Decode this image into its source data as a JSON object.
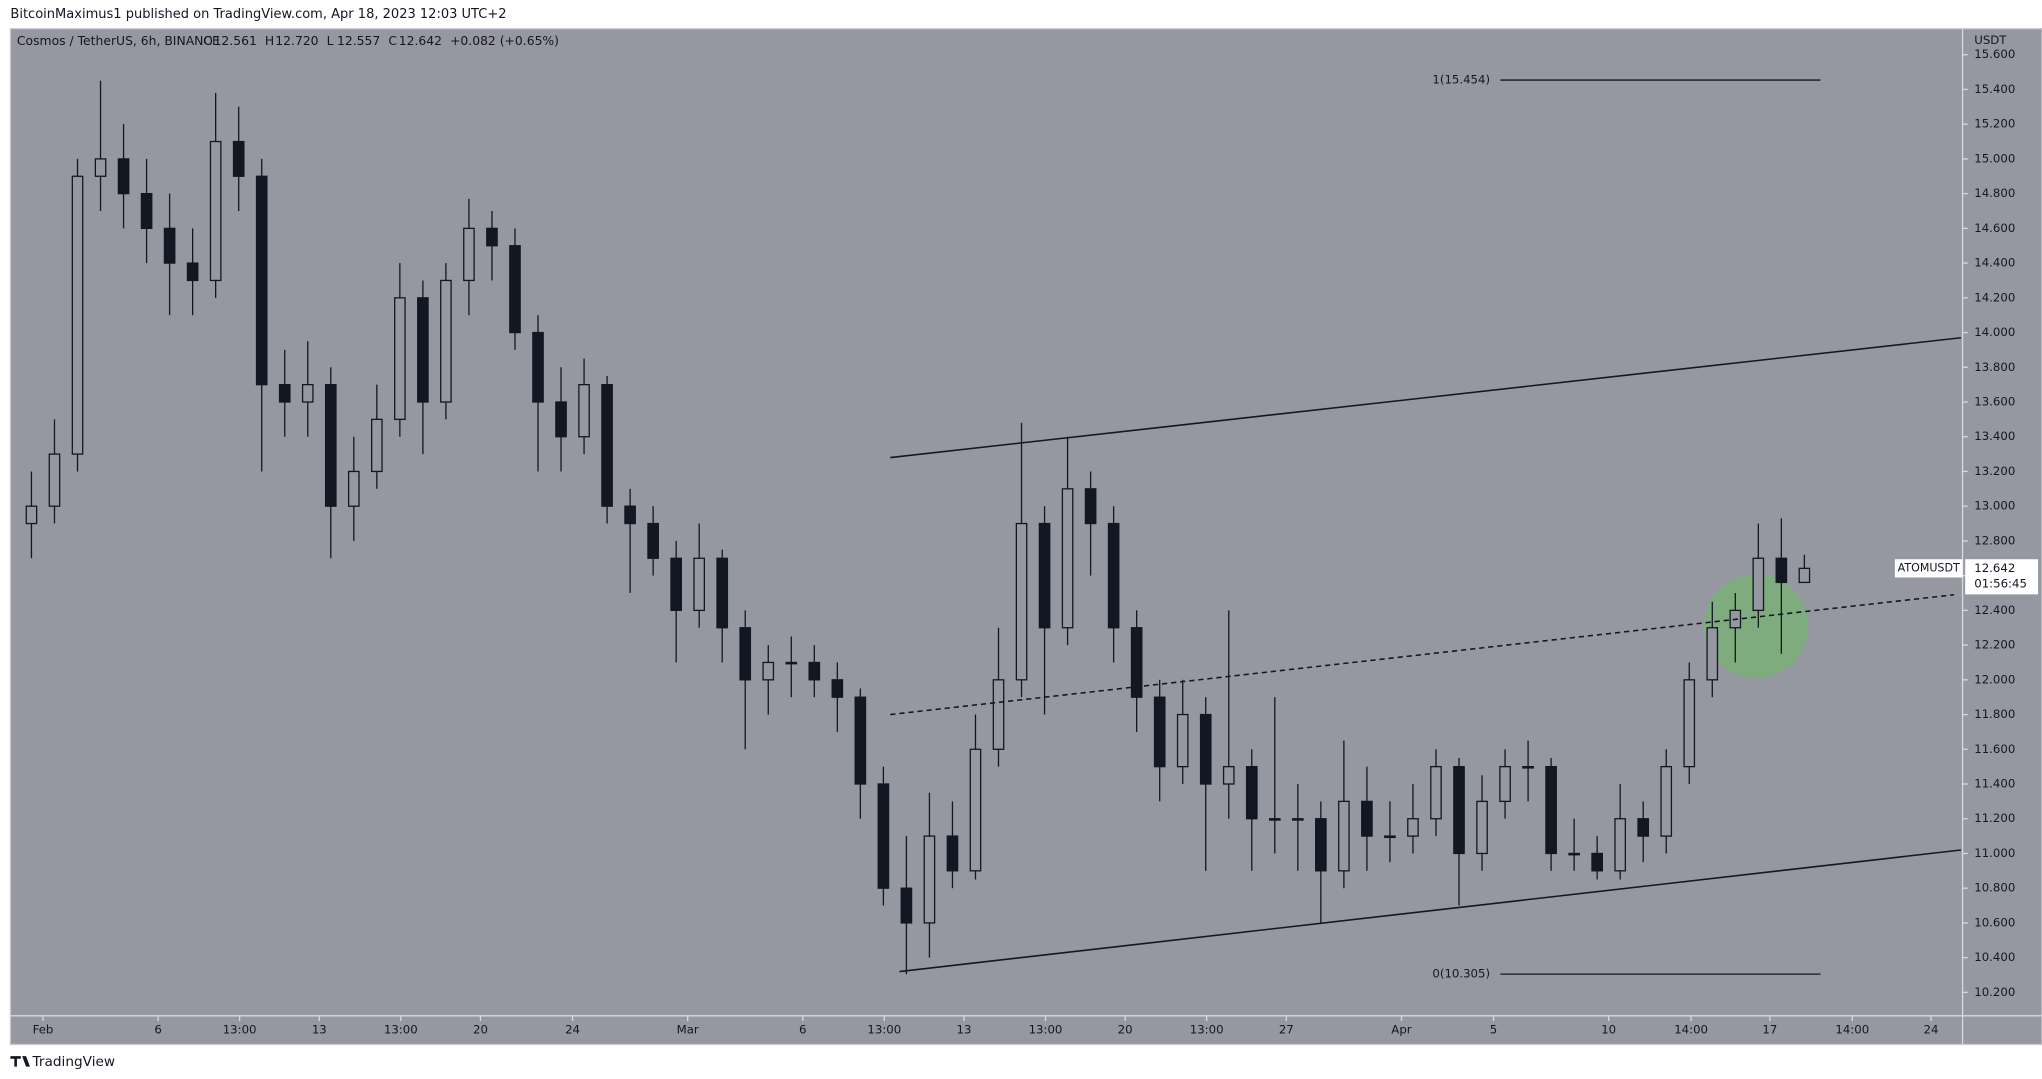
{
  "header": {
    "published": "BitcoinMaximus1 published on TradingView.com, Apr 18, 2023 12:03 UTC+2",
    "brand": "TradingView"
  },
  "chart_data": {
    "type": "candlestick",
    "title": "Cosmos / TetherUS, 6h, BINANCE",
    "color": "#131722",
    "background": "#9598a1",
    "legend": [
      {
        "key": "O",
        "value": "12.561"
      },
      {
        "key": "H",
        "value": "12.720"
      },
      {
        "key": "L",
        "value": "12.557"
      },
      {
        "key": "C",
        "value": "12.642"
      },
      {
        "key": "",
        "value": "+0.082 (+0.65%)"
      }
    ],
    "y_unit": "USDT",
    "last_price": {
      "symbol": "ATOMUSDT",
      "value": 12.642,
      "value_label": "12.642",
      "countdown": "01:56:45"
    },
    "x": [
      -0.5,
      0.5,
      1.5,
      2.5,
      3.5,
      4.5,
      5.5,
      6.5,
      7.5,
      8.5,
      9.5,
      10.5,
      11.5,
      12.5,
      13.5,
      14.5,
      15.5,
      16.5,
      17.5,
      18.5,
      19.5,
      20.5,
      21.5,
      22.5,
      23.5,
      24.5,
      25.5,
      26.5,
      27.5,
      28.5,
      29.5,
      30.5,
      31.5,
      32.5,
      33.5,
      34.5,
      35.5,
      36.5,
      37.5,
      38.5,
      39.5,
      40.5,
      41.5,
      42.5,
      43.5,
      44.5,
      45.5,
      46.5,
      47.5,
      48.5,
      49.5,
      50.5,
      51.5,
      52.5,
      53.5,
      54.5,
      55.5,
      56.5,
      57.5,
      58.5,
      59.5,
      60.5,
      61.5,
      62.5,
      63.5,
      64.5,
      65.5,
      66.5,
      67.5,
      68.5,
      69.5,
      70.5,
      71.5,
      72.5,
      73.5,
      74.5,
      75.5,
      76.5
    ],
    "open": [
      12.9,
      13.0,
      13.3,
      14.9,
      15.0,
      14.8,
      14.6,
      14.4,
      14.3,
      15.1,
      14.9,
      13.7,
      13.6,
      13.7,
      13.0,
      13.2,
      13.5,
      14.2,
      13.6,
      14.3,
      14.6,
      14.5,
      14.0,
      13.6,
      13.4,
      13.7,
      13.0,
      12.9,
      12.7,
      12.4,
      12.7,
      12.3,
      12.0,
      12.1,
      12.1,
      12.0,
      11.9,
      11.4,
      10.8,
      10.6,
      11.1,
      10.9,
      11.6,
      12.0,
      12.9,
      12.3,
      13.1,
      12.9,
      12.3,
      11.9,
      11.5,
      11.8,
      11.4,
      11.5,
      11.2,
      11.2,
      11.2,
      10.9,
      11.3,
      11.1,
      11.1,
      11.2,
      11.5,
      11.0,
      11.3,
      11.5,
      11.5,
      11.0,
      11.0,
      10.9,
      11.2,
      11.1,
      11.5,
      12.0,
      12.3,
      12.4,
      12.7,
      12.561
    ],
    "high": [
      13.2,
      13.5,
      15.0,
      15.45,
      15.2,
      15.0,
      14.8,
      14.6,
      15.38,
      15.3,
      15.0,
      13.9,
      13.95,
      13.8,
      13.4,
      13.7,
      14.4,
      14.3,
      14.4,
      14.77,
      14.7,
      14.6,
      14.1,
      13.8,
      13.85,
      13.75,
      13.1,
      13.0,
      12.8,
      12.9,
      12.75,
      12.4,
      12.2,
      12.25,
      12.2,
      12.1,
      11.95,
      11.5,
      11.1,
      11.35,
      11.3,
      11.8,
      12.3,
      13.48,
      13.0,
      13.4,
      13.2,
      13.0,
      12.4,
      12.0,
      12.0,
      11.9,
      12.4,
      11.6,
      11.9,
      11.4,
      11.3,
      11.65,
      11.5,
      11.3,
      11.4,
      11.6,
      11.55,
      11.45,
      11.6,
      11.65,
      11.55,
      11.2,
      11.1,
      11.4,
      11.3,
      11.6,
      12.1,
      12.45,
      12.5,
      12.9,
      12.93,
      12.72
    ],
    "low": [
      12.7,
      12.9,
      13.2,
      14.7,
      14.6,
      14.4,
      14.1,
      14.1,
      14.2,
      14.7,
      13.2,
      13.4,
      13.4,
      12.7,
      12.8,
      13.1,
      13.4,
      13.3,
      13.5,
      14.1,
      14.3,
      13.9,
      13.2,
      13.2,
      13.3,
      12.9,
      12.5,
      12.6,
      12.1,
      12.3,
      12.1,
      11.6,
      11.8,
      11.9,
      11.9,
      11.7,
      11.2,
      10.7,
      10.305,
      10.4,
      10.8,
      10.85,
      11.5,
      11.9,
      11.8,
      12.2,
      12.6,
      12.1,
      11.7,
      11.3,
      11.4,
      10.9,
      11.2,
      10.9,
      11.0,
      10.9,
      10.6,
      10.8,
      10.9,
      10.95,
      11.0,
      11.1,
      10.7,
      10.9,
      11.2,
      11.3,
      10.9,
      10.9,
      10.85,
      10.85,
      10.95,
      11.0,
      11.4,
      11.9,
      12.1,
      12.3,
      12.15,
      12.557
    ],
    "close": [
      13.0,
      13.3,
      14.9,
      15.0,
      14.8,
      14.6,
      14.4,
      14.3,
      15.1,
      14.9,
      13.7,
      13.6,
      13.7,
      13.0,
      13.2,
      13.5,
      14.2,
      13.6,
      14.3,
      14.6,
      14.5,
      14.0,
      13.6,
      13.4,
      13.7,
      13.0,
      12.9,
      12.7,
      12.4,
      12.7,
      12.3,
      12.0,
      12.1,
      12.1,
      12.0,
      11.9,
      11.4,
      10.8,
      10.6,
      11.1,
      10.9,
      11.6,
      12.0,
      12.9,
      12.3,
      13.1,
      12.9,
      12.3,
      11.9,
      11.5,
      11.8,
      11.4,
      11.5,
      11.2,
      11.2,
      11.2,
      10.9,
      11.3,
      11.1,
      11.1,
      11.2,
      11.5,
      11.0,
      11.3,
      11.5,
      11.5,
      11.0,
      11.0,
      10.9,
      11.2,
      11.1,
      11.5,
      12.0,
      12.3,
      12.4,
      12.7,
      12.561,
      12.642
    ],
    "xlim": [
      -1.414,
      83.37
    ],
    "xticks": [
      {
        "value": 0,
        "label": "Feb"
      },
      {
        "value": 5,
        "label": "6"
      },
      {
        "value": 8.54,
        "label": "13:00"
      },
      {
        "value": 12,
        "label": "13"
      },
      {
        "value": 15.54,
        "label": "13:00"
      },
      {
        "value": 19,
        "label": "20"
      },
      {
        "value": 23,
        "label": "24"
      },
      {
        "value": 28,
        "label": "Mar"
      },
      {
        "value": 33,
        "label": "6"
      },
      {
        "value": 36.54,
        "label": "13:00"
      },
      {
        "value": 40,
        "label": "13"
      },
      {
        "value": 43.54,
        "label": "13:00"
      },
      {
        "value": 47,
        "label": "20"
      },
      {
        "value": 50.54,
        "label": "13:00"
      },
      {
        "value": 54,
        "label": "27"
      },
      {
        "value": 59,
        "label": "Apr"
      },
      {
        "value": 63,
        "label": "5"
      },
      {
        "value": 68,
        "label": "10"
      },
      {
        "value": 71.58,
        "label": "14:00"
      },
      {
        "value": 75,
        "label": "17"
      },
      {
        "value": 78.58,
        "label": "14:00"
      },
      {
        "value": 82,
        "label": "24"
      }
    ],
    "ylim": [
      10.065,
      15.75
    ],
    "yticks": [
      {
        "value": 10.2,
        "label": "10.200"
      },
      {
        "value": 10.4,
        "label": "10.400"
      },
      {
        "value": 10.6,
        "label": "10.600"
      },
      {
        "value": 10.8,
        "label": "10.800"
      },
      {
        "value": 11,
        "label": "11.000"
      },
      {
        "value": 11.2,
        "label": "11.200"
      },
      {
        "value": 11.4,
        "label": "11.400"
      },
      {
        "value": 11.6,
        "label": "11.600"
      },
      {
        "value": 11.8,
        "label": "11.800"
      },
      {
        "value": 12,
        "label": "12.000"
      },
      {
        "value": 12.2,
        "label": "12.200"
      },
      {
        "value": 12.4,
        "label": "12.400"
      },
      {
        "value": 12.6,
        "label": "12.600"
      },
      {
        "value": 12.8,
        "label": "12.800"
      },
      {
        "value": 13,
        "label": "13.000"
      },
      {
        "value": 13.2,
        "label": "13.200"
      },
      {
        "value": 13.4,
        "label": "13.400"
      },
      {
        "value": 13.6,
        "label": "13.600"
      },
      {
        "value": 13.8,
        "label": "13.800"
      },
      {
        "value": 14,
        "label": "14.000"
      },
      {
        "value": 14.2,
        "label": "14.200"
      },
      {
        "value": 14.4,
        "label": "14.400"
      },
      {
        "value": 14.6,
        "label": "14.600"
      },
      {
        "value": 14.8,
        "label": "14.800"
      },
      {
        "value": 15,
        "label": "15.000"
      },
      {
        "value": 15.2,
        "label": "15.200"
      },
      {
        "value": 15.4,
        "label": "15.400"
      },
      {
        "value": 15.6,
        "label": "15.600"
      }
    ],
    "grid": false,
    "trendlines": [
      {
        "x": [
          36.8,
          83.3
        ],
        "y": [
          13.28,
          13.97
        ],
        "dashed": false
      },
      {
        "x": [
          37.2,
          83.3
        ],
        "y": [
          10.32,
          11.02
        ],
        "dashed": false
      },
      {
        "x": [
          36.8,
          83.0
        ],
        "y": [
          11.8,
          12.49
        ],
        "dashed": true
      }
    ],
    "fib": {
      "x": [
        63.3,
        77.2
      ],
      "levels": [
        {
          "label": "1(15.454)",
          "value": 15.454
        },
        {
          "label": "0(10.305)",
          "value": 10.305
        }
      ]
    },
    "highlight": {
      "x": 74.4,
      "y": 12.31,
      "color": "rgba(110,190,100,0.55)"
    }
  }
}
